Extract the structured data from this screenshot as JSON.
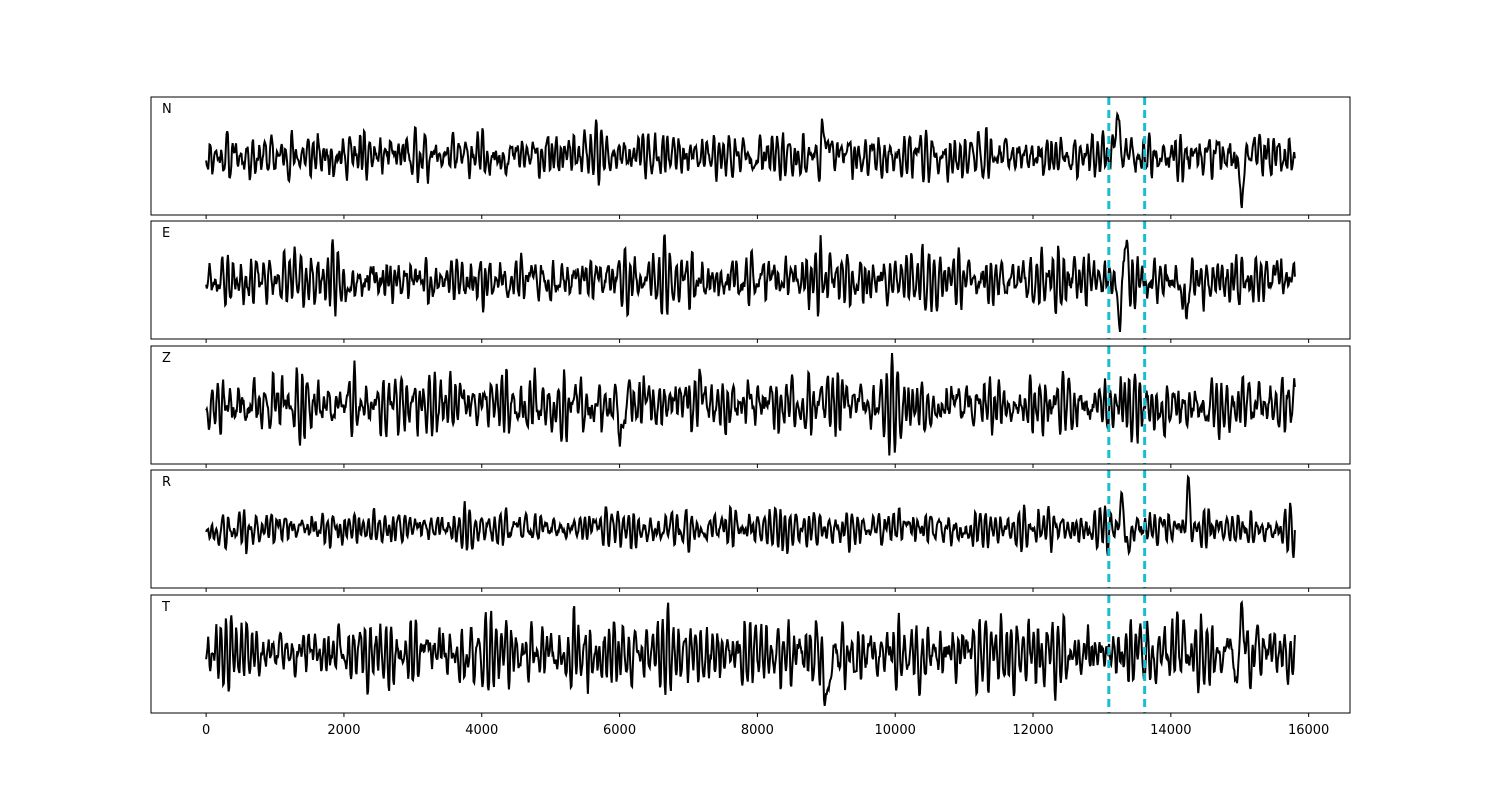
{
  "chart_data": {
    "type": "line",
    "title": "",
    "xlabel": "",
    "ylabel": "",
    "xlim": [
      -800,
      16600
    ],
    "x_ticks": [
      0,
      2000,
      4000,
      6000,
      8000,
      10000,
      12000,
      14000,
      16000
    ],
    "x_tick_labels": [
      "0",
      "2000",
      "4000",
      "6000",
      "8000",
      "10000",
      "12000",
      "14000",
      "16000"
    ],
    "x_range": [
      0,
      15800
    ],
    "grid": false,
    "line_color": "#000000",
    "marker_color": "#17becf",
    "markers": [
      13100,
      13620
    ],
    "panels": [
      {
        "label": "N",
        "seed": 11,
        "noise": 0.42,
        "events": [
          {
            "x": 13230,
            "amp": 0.9
          },
          {
            "x": 15020,
            "amp": -1.0
          },
          {
            "x": 9000,
            "amp": 0.7
          }
        ]
      },
      {
        "label": "E",
        "seed": 23,
        "noise": 0.33,
        "events": [
          {
            "x": 13330,
            "amp": 1.0
          },
          {
            "x": 13280,
            "amp": -0.9
          },
          {
            "x": 14220,
            "amp": -0.7
          }
        ]
      },
      {
        "label": "Z",
        "seed": 37,
        "noise": 0.55,
        "events": [
          {
            "x": 6030,
            "amp": -0.95
          },
          {
            "x": 7180,
            "amp": 0.8
          }
        ]
      },
      {
        "label": "R",
        "seed": 49,
        "noise": 0.3,
        "events": [
          {
            "x": 13300,
            "amp": 1.0
          },
          {
            "x": 13360,
            "amp": -0.8
          },
          {
            "x": 14250,
            "amp": 0.75
          }
        ]
      },
      {
        "label": "T",
        "seed": 61,
        "noise": 0.42,
        "events": [
          {
            "x": 15020,
            "amp": 0.95
          },
          {
            "x": 9000,
            "amp": -0.85
          },
          {
            "x": 14960,
            "amp": -0.65
          }
        ]
      }
    ]
  }
}
